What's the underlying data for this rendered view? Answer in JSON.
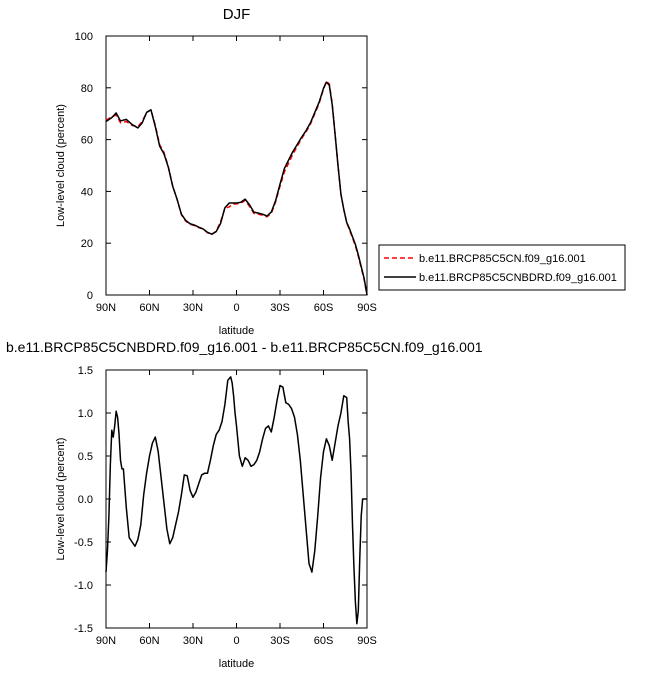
{
  "chart_data": [
    {
      "type": "line",
      "title": "DJF",
      "xlabel": "latitude",
      "ylabel": "Low-level cloud (percent)",
      "xlim": [
        90,
        -90
      ],
      "ylim": [
        0,
        100
      ],
      "xticks": [
        90,
        60,
        30,
        0,
        -30,
        -60,
        -90
      ],
      "xtick_labels": [
        "90N",
        "60N",
        "30N",
        "0",
        "30S",
        "60S",
        "90S"
      ],
      "yticks": [
        0,
        20,
        40,
        60,
        80,
        100
      ],
      "ytick_labels": [
        "0",
        "20",
        "40",
        "60",
        "80",
        "100"
      ],
      "legend_position": "right",
      "series": [
        {
          "name": "b.e11.BRCP85C5CN.f09_g16.001",
          "color": "#ff0000",
          "style": "dashed",
          "x": [
            90,
            86,
            83,
            80,
            76,
            72,
            68,
            65,
            62,
            59,
            56,
            53,
            50,
            47,
            44,
            41,
            38,
            35,
            32,
            29,
            26,
            23,
            20,
            17,
            14,
            11,
            8,
            5,
            3,
            0,
            -3,
            -6,
            -9,
            -12,
            -15,
            -18,
            -21,
            -24,
            -27,
            -30,
            -33,
            -36,
            -39,
            -42,
            -45,
            -48,
            -51,
            -54,
            -57,
            -60,
            -62,
            -64,
            -66,
            -68,
            -70,
            -72,
            -74,
            -76,
            -78,
            -80,
            -82,
            -84,
            -86,
            -88,
            -90
          ],
          "y": [
            67.5,
            68.8,
            69.5,
            66.5,
            67,
            65.5,
            65,
            67,
            70.5,
            71.5,
            65.5,
            58,
            55,
            49.5,
            42,
            37,
            31,
            28.5,
            27.3,
            26.8,
            26,
            25.5,
            24,
            23.4,
            24.6,
            28.3,
            33.5,
            34,
            35,
            35.2,
            35.5,
            36.5,
            34.2,
            31.5,
            31.2,
            30.8,
            30.2,
            31.5,
            36,
            42,
            47.5,
            51,
            54.5,
            57.5,
            60.5,
            63,
            66,
            70,
            74,
            79.5,
            82.5,
            81.5,
            74,
            62,
            50,
            39,
            33,
            28,
            25,
            22,
            19,
            15,
            10.5,
            6,
            0
          ]
        },
        {
          "name": "b.e11.BRCP85C5CNBDRD.f09_g16.001",
          "color": "#000000",
          "style": "solid",
          "x": [
            90,
            86,
            83,
            80,
            76,
            72,
            68,
            65,
            62,
            59,
            56,
            53,
            50,
            47,
            44,
            41,
            38,
            35,
            32,
            29,
            26,
            23,
            20,
            17,
            14,
            11,
            8,
            5,
            3,
            0,
            -3,
            -6,
            -9,
            -12,
            -15,
            -18,
            -21,
            -24,
            -27,
            -30,
            -33,
            -36,
            -39,
            -42,
            -45,
            -48,
            -51,
            -54,
            -57,
            -60,
            -62,
            -64,
            -66,
            -68,
            -70,
            -72,
            -74,
            -76,
            -78,
            -80,
            -82,
            -84,
            -86,
            -88,
            -90
          ],
          "y": [
            67,
            68.5,
            70.3,
            67.2,
            67.8,
            65.8,
            64.5,
            66.5,
            70.5,
            71.5,
            65,
            57.5,
            54.5,
            49.3,
            42,
            37,
            31.2,
            28.8,
            27.5,
            27,
            26.2,
            25.5,
            24.2,
            23.5,
            24.5,
            27.6,
            33.7,
            35.5,
            35.5,
            35.5,
            35.8,
            37,
            34.8,
            32,
            31.6,
            31.2,
            30.5,
            32,
            36.5,
            42.8,
            48.8,
            52.2,
            55.5,
            58.2,
            61,
            63.5,
            66.5,
            70.5,
            74.5,
            79.8,
            82.2,
            81,
            73.5,
            62,
            50,
            39,
            33,
            28,
            25.5,
            22.5,
            19.5,
            15.5,
            11,
            6.5,
            0
          ]
        }
      ]
    },
    {
      "type": "line",
      "title": "b.e11.BRCP85C5CNBDRD.f09_g16.001 - b.e11.BRCP85C5CN.f09_g16.001",
      "xlabel": "latitude",
      "ylabel": "Low-level cloud (percent)",
      "xlim": [
        90,
        -90
      ],
      "ylim": [
        -1.5,
        1.5
      ],
      "xticks": [
        90,
        60,
        30,
        0,
        -30,
        -60,
        -90
      ],
      "xtick_labels": [
        "90N",
        "60N",
        "30N",
        "0",
        "30S",
        "60S",
        "90S"
      ],
      "yticks": [
        -1.5,
        -1.0,
        -0.5,
        0.0,
        0.5,
        1.0,
        1.5
      ],
      "ytick_labels": [
        "-1.5",
        "-1.0",
        "-0.5",
        "0.0",
        "0.5",
        "1.0",
        "1.5"
      ],
      "series": [
        {
          "color": "#000000",
          "style": "solid",
          "x": [
            90,
            89,
            88,
            87,
            86,
            85,
            84,
            83,
            82,
            81,
            80,
            79,
            78,
            76,
            74,
            72,
            70,
            68,
            66,
            64,
            62,
            60,
            58,
            56,
            54,
            52,
            50,
            48,
            46,
            44,
            42,
            40,
            38,
            36,
            34,
            32,
            30,
            28,
            26,
            24,
            22,
            20,
            18,
            16,
            14,
            12,
            10,
            8,
            6,
            4,
            3,
            2,
            1,
            0,
            -2,
            -4,
            -6,
            -8,
            -10,
            -12,
            -14,
            -16,
            -18,
            -20,
            -22,
            -24,
            -26,
            -28,
            -30,
            -32,
            -34,
            -36,
            -38,
            -40,
            -42,
            -44,
            -46,
            -48,
            -50,
            -52,
            -54,
            -56,
            -58,
            -60,
            -62,
            -64,
            -66,
            -68,
            -70,
            -72,
            -74,
            -76,
            -77,
            -78,
            -79,
            -80,
            -81,
            -82,
            -83,
            -84,
            -85,
            -86,
            -87,
            -88,
            -89,
            -90
          ],
          "y": [
            -0.85,
            -0.6,
            -0.2,
            0.4,
            0.8,
            0.72,
            0.85,
            1.02,
            0.95,
            0.75,
            0.45,
            0.35,
            0.35,
            -0.1,
            -0.45,
            -0.5,
            -0.55,
            -0.47,
            -0.3,
            0.05,
            0.3,
            0.5,
            0.65,
            0.72,
            0.55,
            0.25,
            -0.05,
            -0.35,
            -0.52,
            -0.45,
            -0.3,
            -0.15,
            0.05,
            0.28,
            0.27,
            0.1,
            0.02,
            0.08,
            0.18,
            0.28,
            0.3,
            0.3,
            0.45,
            0.62,
            0.75,
            0.8,
            0.9,
            1.1,
            1.38,
            1.42,
            1.35,
            1.2,
            1.0,
            0.85,
            0.5,
            0.38,
            0.48,
            0.45,
            0.38,
            0.4,
            0.45,
            0.55,
            0.7,
            0.82,
            0.85,
            0.78,
            0.95,
            1.15,
            1.32,
            1.3,
            1.12,
            1.1,
            1.05,
            0.95,
            0.75,
            0.45,
            0.05,
            -0.35,
            -0.75,
            -0.85,
            -0.6,
            -0.2,
            0.25,
            0.55,
            0.7,
            0.62,
            0.45,
            0.65,
            0.85,
            1.0,
            1.2,
            1.18,
            0.9,
            0.7,
            0.3,
            -0.3,
            -0.8,
            -1.2,
            -1.45,
            -1.3,
            -0.7,
            -0.2,
            0.0,
            0.0,
            0.0,
            0.0
          ]
        }
      ]
    }
  ]
}
